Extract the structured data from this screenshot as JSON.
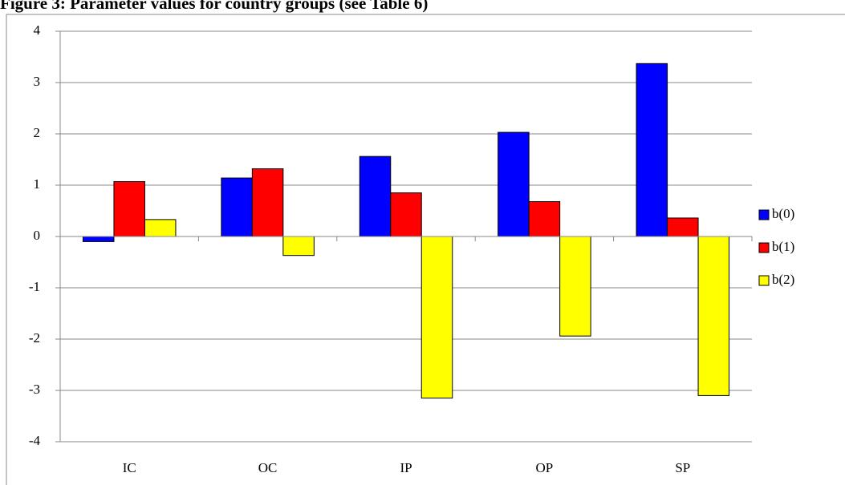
{
  "chart_data": {
    "type": "bar",
    "title": "Figure 3: Parameter values for country groups (see Table 6)",
    "categories": [
      "IC",
      "OC",
      "IP",
      "OP",
      "SP"
    ],
    "series": [
      {
        "name": "b(0)",
        "color": "#0000ff",
        "values": [
          -0.1,
          1.14,
          1.56,
          2.03,
          3.37
        ]
      },
      {
        "name": "b(1)",
        "color": "#ff0000",
        "values": [
          1.07,
          1.32,
          0.85,
          0.68,
          0.36
        ]
      },
      {
        "name": "b(2)",
        "color": "#ffff00",
        "values": [
          0.33,
          -0.37,
          -3.15,
          -1.94,
          -3.1
        ]
      }
    ],
    "ylim": [
      -4,
      4
    ],
    "yticks": [
      -4,
      -3,
      -2,
      -1,
      0,
      1,
      2,
      3,
      4
    ],
    "grid": true,
    "legend": "right"
  }
}
